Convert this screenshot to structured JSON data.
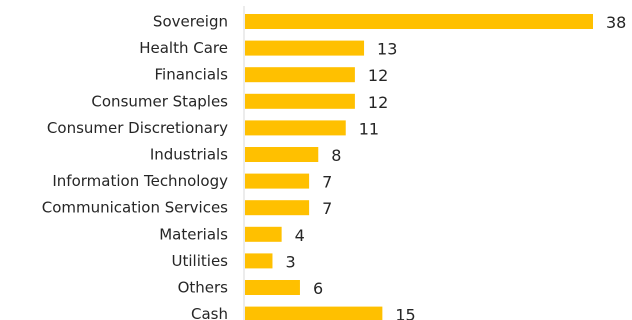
{
  "chart_data": {
    "type": "bar",
    "orientation": "horizontal",
    "categories": [
      "Sovereign",
      "Health Care",
      "Financials",
      "Consumer Staples",
      "Consumer Discretionary",
      "Industrials",
      "Information Technology",
      "Communication Services",
      "Materials",
      "Utilities",
      "Others",
      "Cash"
    ],
    "values": [
      38,
      13,
      12,
      12,
      11,
      8,
      7,
      7,
      4,
      3,
      6,
      15
    ],
    "title": "",
    "xlabel": "",
    "ylabel": "",
    "xlim": [
      0,
      38
    ],
    "grid": false,
    "legend": "none",
    "bar_color": "#FFC000",
    "axis_color": "#D9D9D9",
    "text_color": "#262626"
  }
}
